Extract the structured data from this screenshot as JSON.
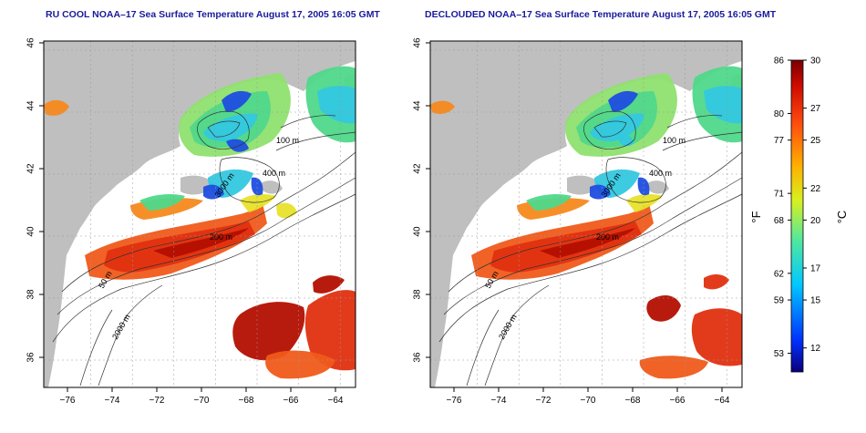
{
  "maps": [
    {
      "title": "RU COOL NOAA–17 Sea Surface Temperature August 17, 2005 16:05 GMT",
      "x_ticks": [
        "−76",
        "−74",
        "−72",
        "−70",
        "−68",
        "−66",
        "−64"
      ],
      "y_ticks": [
        "36",
        "38",
        "40",
        "42",
        "44",
        "46"
      ],
      "contour_labels": [
        "100 m",
        "400 m",
        "200 m",
        "3000 m",
        "50 m",
        "2000 m"
      ]
    },
    {
      "title": "DECLOUDED NOAA–17 Sea Surface Temperature August 17, 2005 16:05 GMT",
      "x_ticks": [
        "−76",
        "−74",
        "−72",
        "−70",
        "−68",
        "−66",
        "−64"
      ],
      "y_ticks": [
        "36",
        "38",
        "40",
        "42",
        "44",
        "46"
      ],
      "contour_labels": [
        "100 m",
        "400 m",
        "200 m",
        "3000 m",
        "50 m",
        "2000 m"
      ]
    }
  ],
  "colorbar": {
    "f_label": "°F",
    "c_label": "°C",
    "f_ticks": [
      "86",
      "80",
      "77",
      "71",
      "68",
      "62",
      "59",
      "53"
    ],
    "c_ticks": [
      "30",
      "27",
      "25",
      "22",
      "20",
      "17",
      "15",
      "12"
    ],
    "c_range": [
      10.5,
      30
    ]
  },
  "colors": {
    "land": "#bfbfbf",
    "title": "#1a1a9c",
    "cold": "#0000b0",
    "warm": "#cc1a00"
  }
}
